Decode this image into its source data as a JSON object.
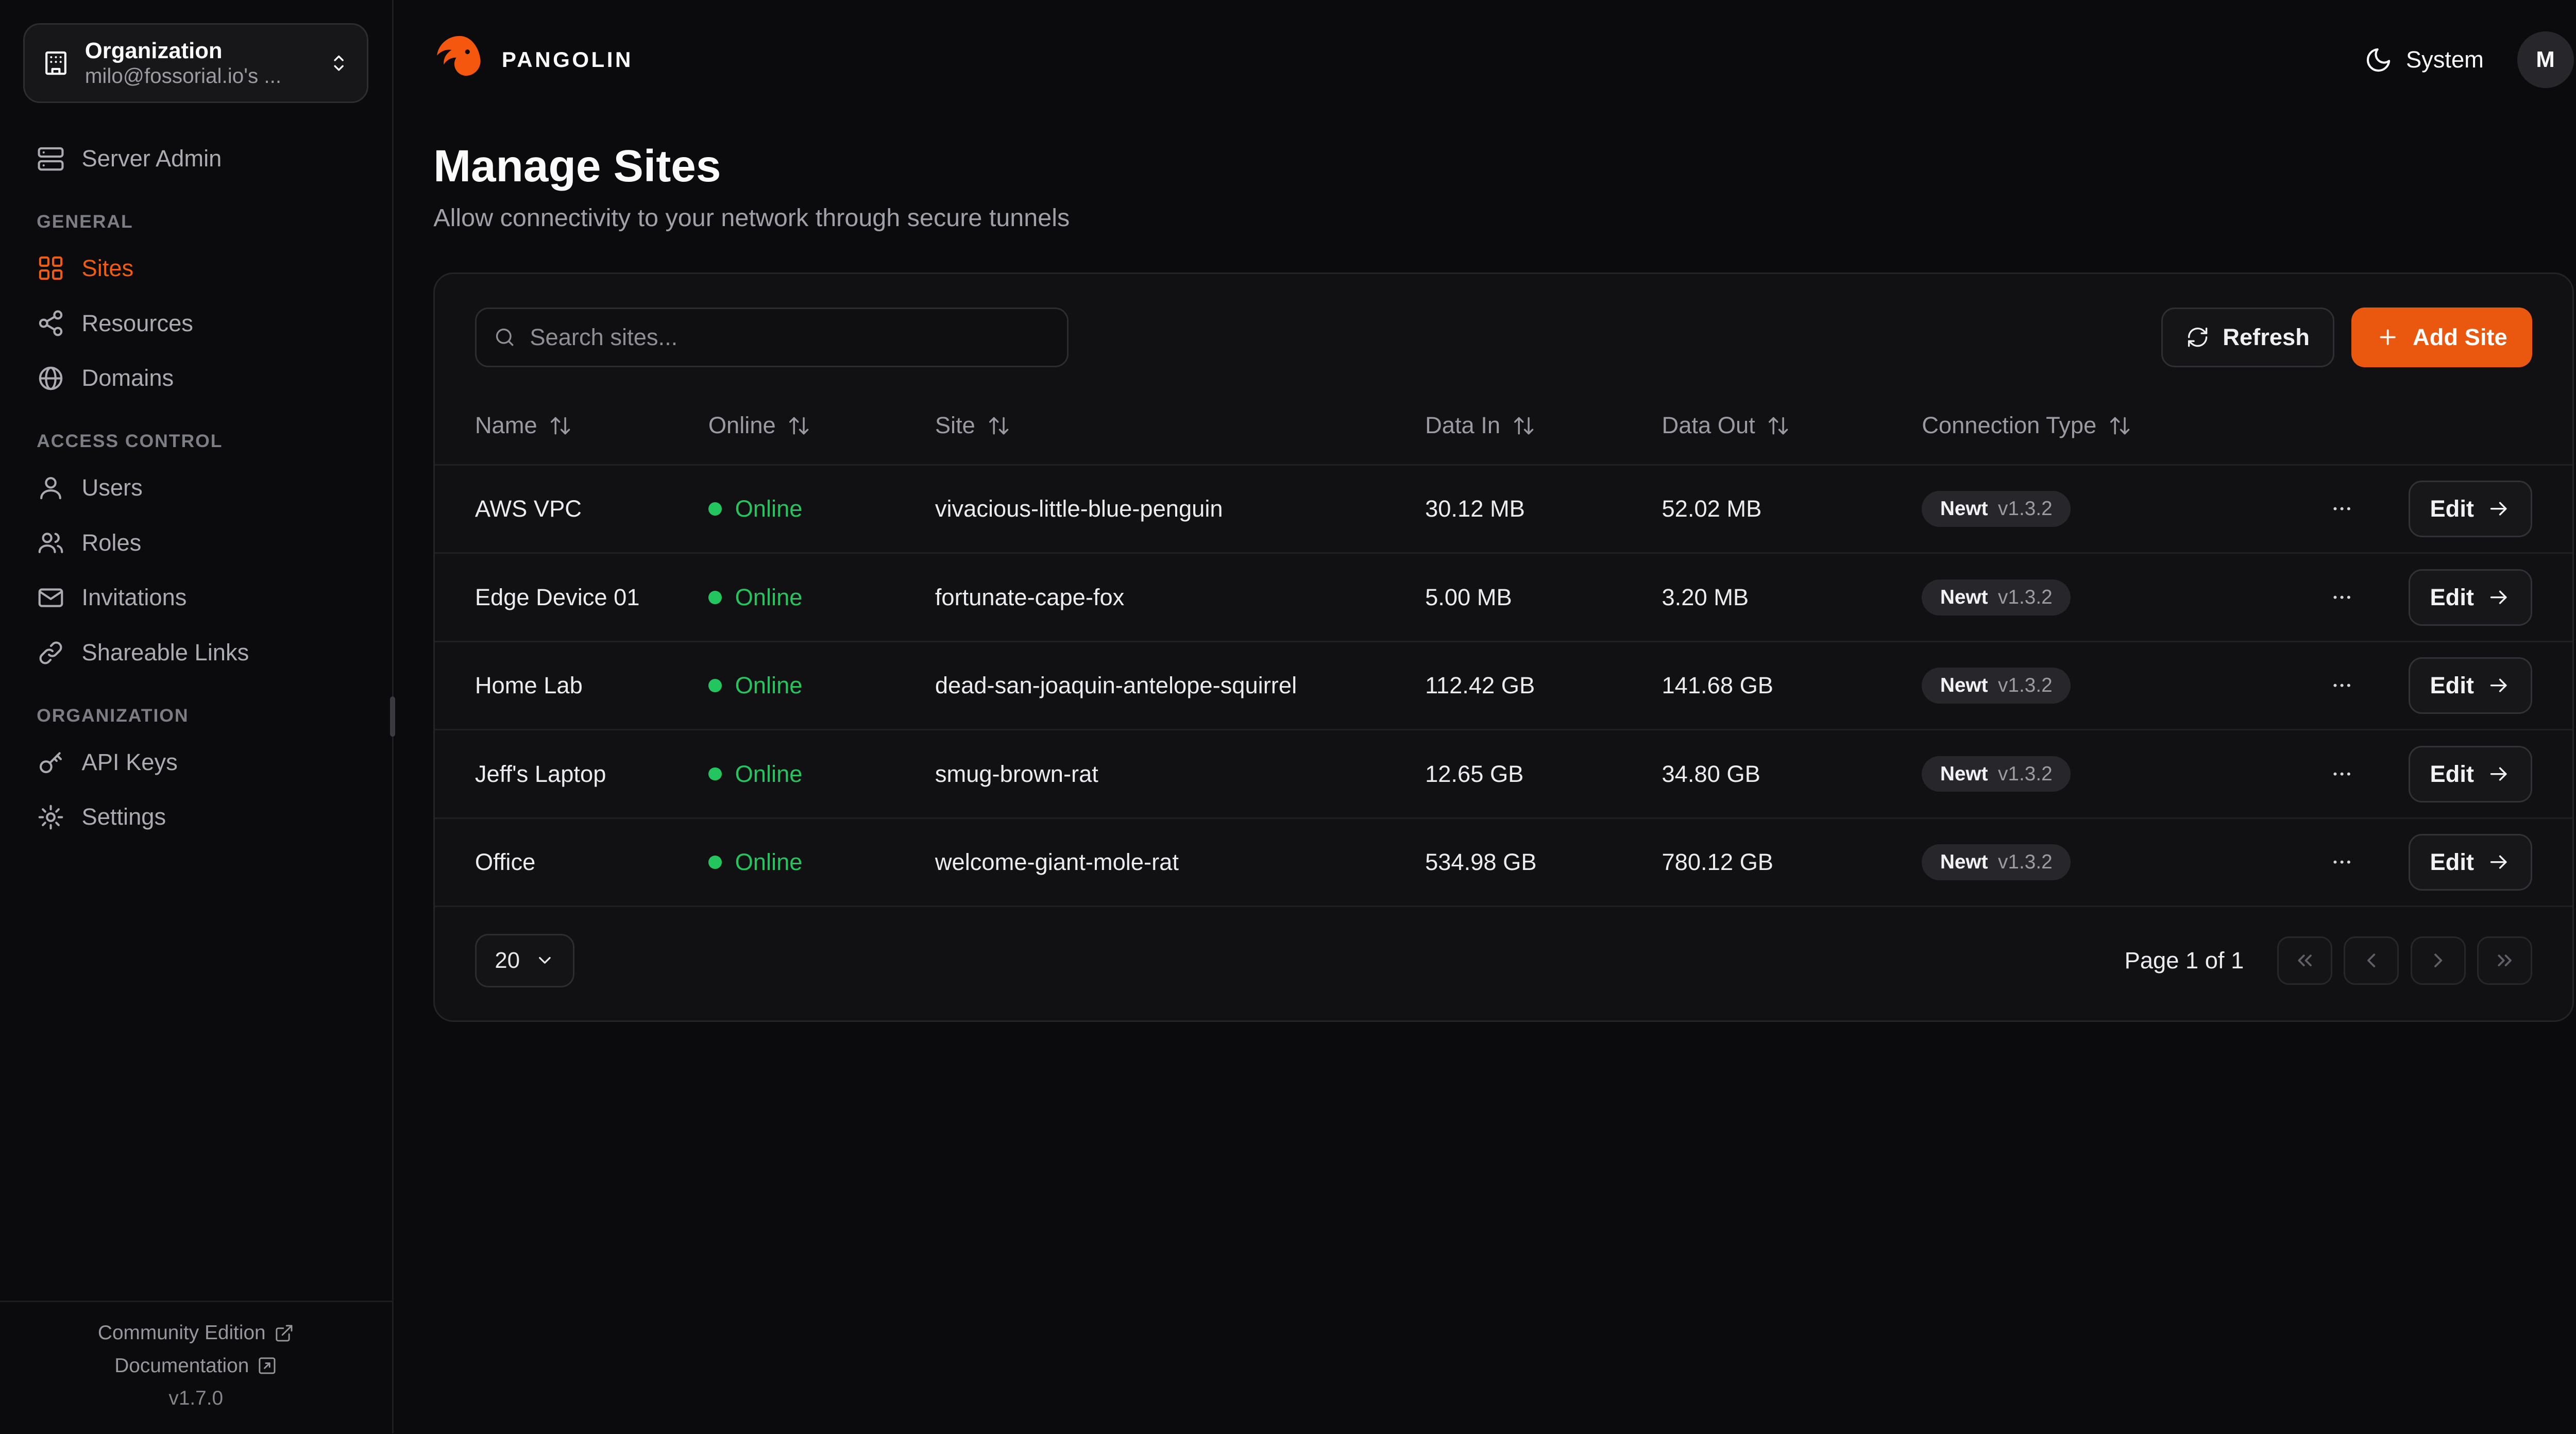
{
  "colors": {
    "accent": "#ea570e",
    "online_green": "#23c55e"
  },
  "sidebar": {
    "org_picker": {
      "title": "Organization",
      "subtitle": "milo@fossorial.io's ..."
    },
    "top_items": [
      {
        "key": "server-admin",
        "label": "Server Admin",
        "icon": "server-icon"
      }
    ],
    "sections": [
      {
        "label": "GENERAL",
        "items": [
          {
            "key": "sites",
            "label": "Sites",
            "icon": "sites-icon",
            "active": true
          },
          {
            "key": "resources",
            "label": "Resources",
            "icon": "resources-icon"
          },
          {
            "key": "domains",
            "label": "Domains",
            "icon": "globe-icon"
          }
        ]
      },
      {
        "label": "ACCESS CONTROL",
        "items": [
          {
            "key": "users",
            "label": "Users",
            "icon": "user-icon"
          },
          {
            "key": "roles",
            "label": "Roles",
            "icon": "roles-icon"
          },
          {
            "key": "invitations",
            "label": "Invitations",
            "icon": "mail-icon"
          },
          {
            "key": "shareable-links",
            "label": "Shareable Links",
            "icon": "link-icon"
          }
        ]
      },
      {
        "label": "ORGANIZATION",
        "items": [
          {
            "key": "api-keys",
            "label": "API Keys",
            "icon": "key-icon"
          },
          {
            "key": "settings",
            "label": "Settings",
            "icon": "gear-icon"
          }
        ]
      }
    ],
    "footer": {
      "community_edition": "Community Edition",
      "documentation": "Documentation",
      "version": "v1.7.0"
    }
  },
  "header": {
    "brand": "PANGOLIN",
    "theme_label": "System",
    "avatar_initial": "M"
  },
  "page": {
    "title": "Manage Sites",
    "subtitle": "Allow connectivity to your network through secure tunnels"
  },
  "toolbar": {
    "search_placeholder": "Search sites...",
    "refresh_label": "Refresh",
    "add_site_label": "Add Site"
  },
  "table": {
    "columns": [
      {
        "key": "name",
        "label": "Name"
      },
      {
        "key": "online",
        "label": "Online"
      },
      {
        "key": "site",
        "label": "Site"
      },
      {
        "key": "data-in",
        "label": "Data In"
      },
      {
        "key": "data-out",
        "label": "Data Out"
      },
      {
        "key": "connection-type",
        "label": "Connection Type"
      }
    ],
    "rows": [
      {
        "name": "AWS VPC",
        "online": "Online",
        "site": "vivacious-little-blue-penguin",
        "data_in": "30.12 MB",
        "data_out": "52.02 MB",
        "connection": "Newt",
        "version": "v1.3.2",
        "edit_label": "Edit"
      },
      {
        "name": "Edge Device 01",
        "online": "Online",
        "site": "fortunate-cape-fox",
        "data_in": "5.00 MB",
        "data_out": "3.20 MB",
        "connection": "Newt",
        "version": "v1.3.2",
        "edit_label": "Edit"
      },
      {
        "name": "Home Lab",
        "online": "Online",
        "site": "dead-san-joaquin-antelope-squirrel",
        "data_in": "112.42 GB",
        "data_out": "141.68 GB",
        "connection": "Newt",
        "version": "v1.3.2",
        "edit_label": "Edit"
      },
      {
        "name": "Jeff's Laptop",
        "online": "Online",
        "site": "smug-brown-rat",
        "data_in": "12.65 GB",
        "data_out": "34.80 GB",
        "connection": "Newt",
        "version": "v1.3.2",
        "edit_label": "Edit"
      },
      {
        "name": "Office",
        "online": "Online",
        "site": "welcome-giant-mole-rat",
        "data_in": "534.98 GB",
        "data_out": "780.12 GB",
        "connection": "Newt",
        "version": "v1.3.2",
        "edit_label": "Edit"
      }
    ]
  },
  "pagination": {
    "page_size": "20",
    "page_label": "Page 1 of 1"
  }
}
